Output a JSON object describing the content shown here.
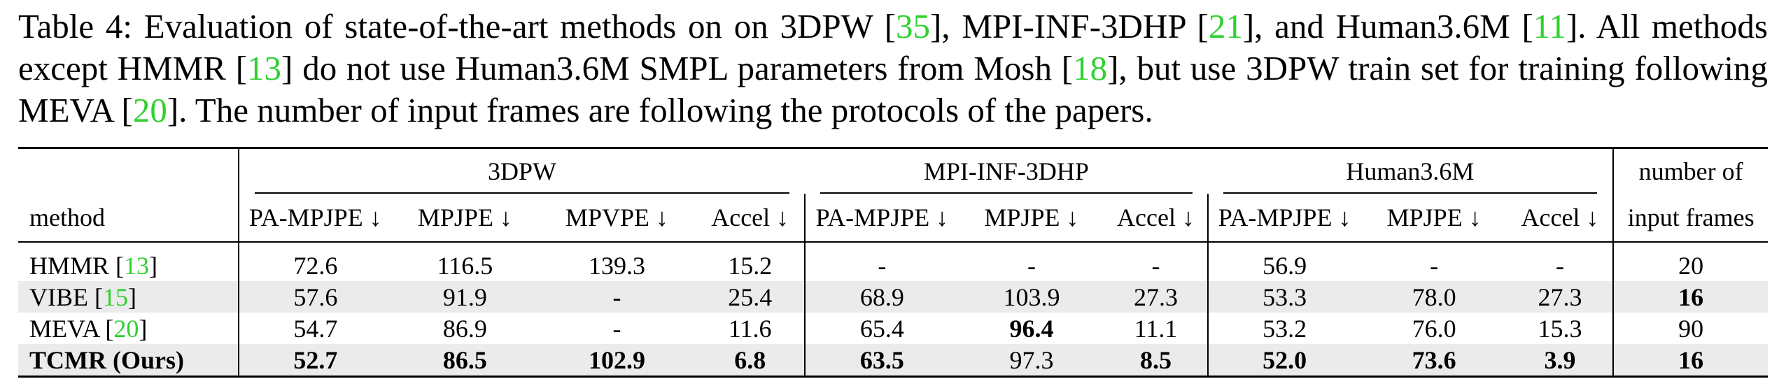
{
  "caption": {
    "p1": "Table 4: Evaluation of state-of-the-art methods on on 3DPW [",
    "r1": "35",
    "p2": "], MPI-INF-3DHP [",
    "r2": "21",
    "p3": "], and Human3.6M [",
    "r3": "11",
    "p4": "]. All methods except HMMR [",
    "r4": "13",
    "p5": "] do not use Human3.6M SMPL parameters from Mosh [",
    "r5": "18",
    "p6": "], but use 3DPW train set for training following MEVA [",
    "r6": "20",
    "p7": "]. The number of input frames are following the protocols of the papers."
  },
  "table": {
    "groups": [
      "3DPW",
      "MPI-INF-3DHP",
      "Human3.6M",
      "number of"
    ],
    "method_header": "method",
    "col_headers": [
      "PA-MPJPE ↓",
      "MPJPE ↓",
      "MPVPE ↓",
      "Accel ↓",
      "PA-MPJPE ↓",
      "MPJPE ↓",
      "Accel ↓",
      "PA-MPJPE ↓",
      "MPJPE ↓",
      "Accel ↓",
      "input frames"
    ],
    "rows": [
      {
        "name": "HMMR [",
        "ref": "13",
        "close": "]",
        "cells": [
          "72.6",
          "116.5",
          "139.3",
          "15.2",
          "-",
          "-",
          "-",
          "56.9",
          "-",
          "-",
          "20"
        ]
      },
      {
        "name": "VIBE [",
        "ref": "15",
        "close": "]",
        "cells": [
          "57.6",
          "91.9",
          "-",
          "25.4",
          "68.9",
          "103.9",
          "27.3",
          "53.3",
          "78.0",
          "27.3",
          "16"
        ]
      },
      {
        "name": "MEVA [",
        "ref": "20",
        "close": "]",
        "cells": [
          "54.7",
          "86.9",
          "-",
          "11.6",
          "65.4",
          "96.4",
          "11.1",
          "53.2",
          "76.0",
          "15.3",
          "90"
        ]
      },
      {
        "name": "TCMR (Ours)",
        "cells": [
          "52.7",
          "86.5",
          "102.9",
          "6.8",
          "63.5",
          "97.3",
          "8.5",
          "52.0",
          "73.6",
          "3.9",
          "16"
        ]
      }
    ]
  }
}
